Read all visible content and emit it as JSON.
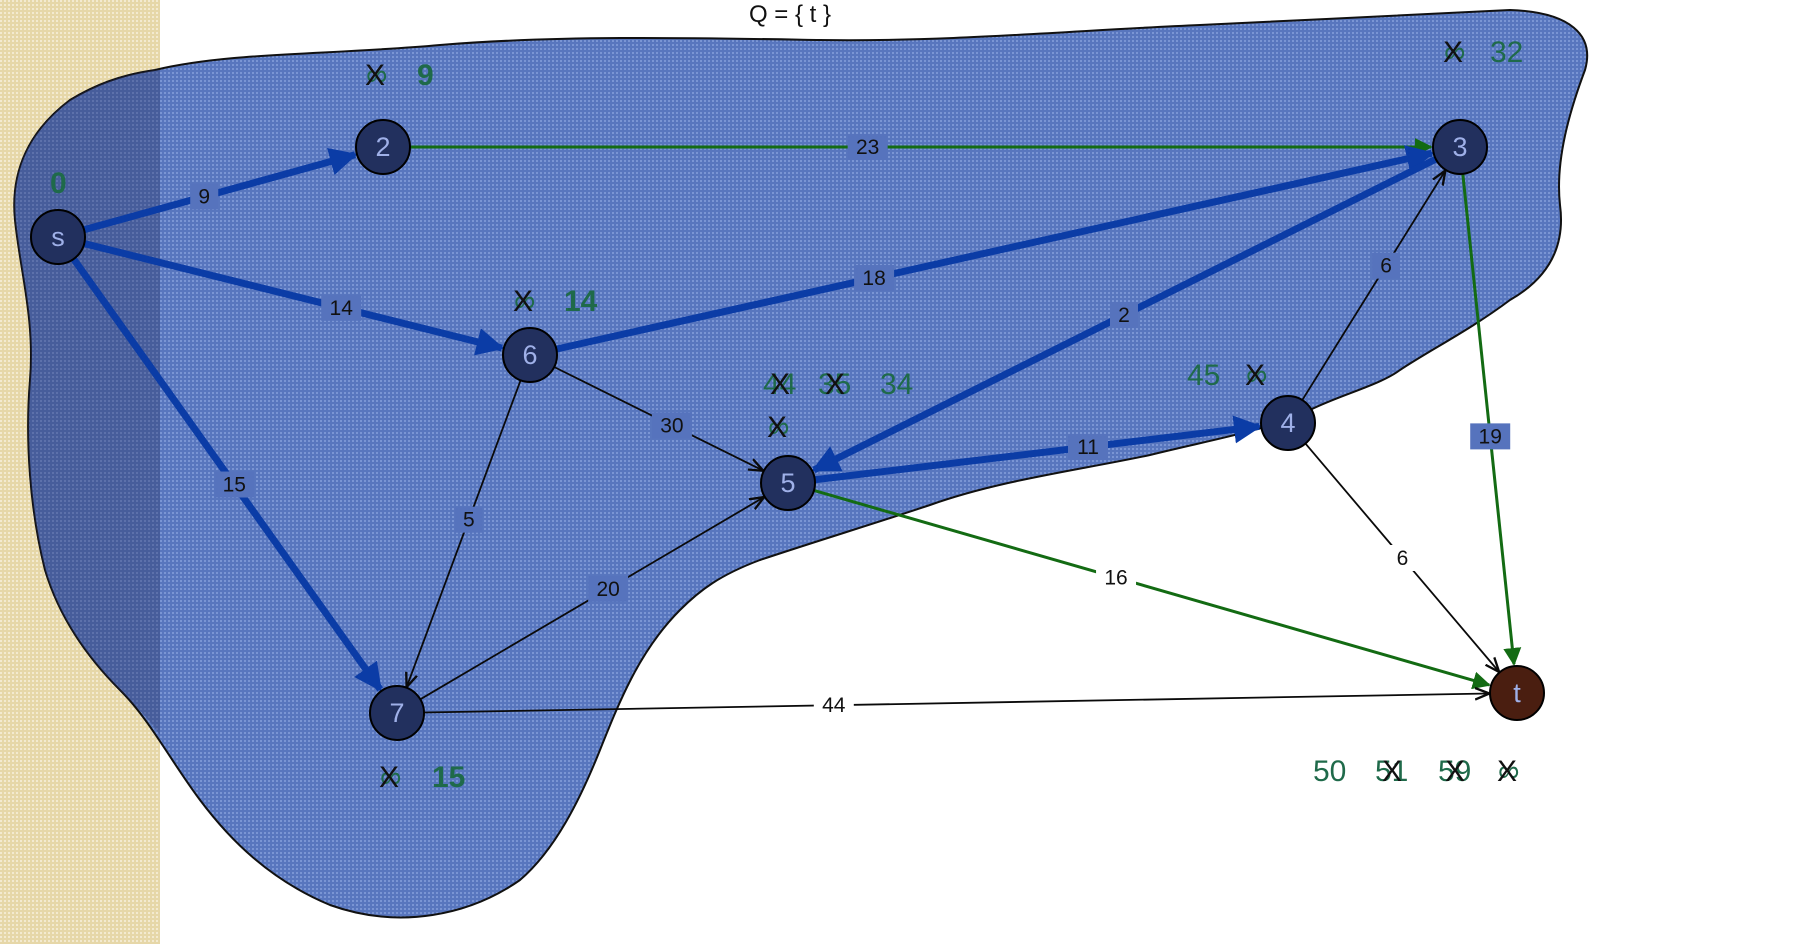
{
  "title": "Q = { t }",
  "colors": {
    "blob": "#4a6ab8",
    "node": "#22305e",
    "target_node": "#4a1e10",
    "thick_edge": "#0b3ca6",
    "thin_edge": "#0a0a0a",
    "green_edge": "#136b13",
    "dist_label": "#1f6a4a",
    "sidebar": "#e9dcb0"
  },
  "nodes": [
    {
      "id": "s",
      "label": "s"
    },
    {
      "id": "2",
      "label": "2"
    },
    {
      "id": "3",
      "label": "3"
    },
    {
      "id": "4",
      "label": "4"
    },
    {
      "id": "5",
      "label": "5"
    },
    {
      "id": "6",
      "label": "6"
    },
    {
      "id": "7",
      "label": "7"
    },
    {
      "id": "t",
      "label": "t"
    }
  ],
  "edges": [
    {
      "from": "s",
      "to": "2",
      "weight": "9",
      "style": "thick"
    },
    {
      "from": "s",
      "to": "6",
      "weight": "14",
      "style": "thick"
    },
    {
      "from": "s",
      "to": "7",
      "weight": "15",
      "style": "thick"
    },
    {
      "from": "2",
      "to": "3",
      "weight": "23",
      "style": "green"
    },
    {
      "from": "6",
      "to": "3",
      "weight": "18",
      "style": "thick"
    },
    {
      "from": "3",
      "to": "5",
      "weight": "2",
      "style": "thick"
    },
    {
      "from": "6",
      "to": "5",
      "weight": "30",
      "style": "thin"
    },
    {
      "from": "6",
      "to": "7",
      "weight": "5",
      "style": "thin"
    },
    {
      "from": "7",
      "to": "5",
      "weight": "20",
      "style": "thin"
    },
    {
      "from": "5",
      "to": "4",
      "weight": "11",
      "style": "thick"
    },
    {
      "from": "4",
      "to": "3",
      "weight": "6",
      "style": "thin"
    },
    {
      "from": "4",
      "to": "t",
      "weight": "6",
      "style": "thin"
    },
    {
      "from": "3",
      "to": "t",
      "weight": "19",
      "style": "green"
    },
    {
      "from": "5",
      "to": "t",
      "weight": "16",
      "style": "green"
    },
    {
      "from": "7",
      "to": "t",
      "weight": "44",
      "style": "thin"
    }
  ],
  "distance_labels": {
    "s": "0",
    "2": "9",
    "3": "32",
    "4": "45",
    "5": "34",
    "5_crossed": [
      "44",
      "35"
    ],
    "6": "14",
    "7": "15",
    "t": "50",
    "t_crossed": [
      "51",
      "59"
    ]
  },
  "infinity_symbol": "∞",
  "cross_symbol": "X"
}
